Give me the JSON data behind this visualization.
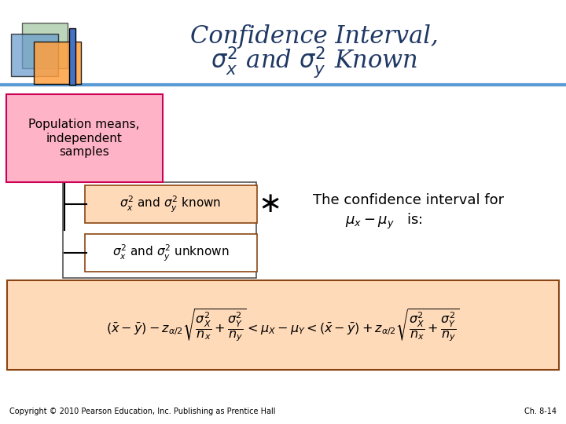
{
  "title_line1": "Confidence Interval,",
  "title_color": "#1F3864",
  "background_color": "#FFFFFF",
  "header_line_color": "#5B9BD5",
  "pink_box_text": "Population means,\nindependent\nsamples",
  "pink_box_facecolor": "#FFB3C6",
  "pink_box_edgecolor": "#CC0055",
  "known_box_facecolor": "#FFDAB9",
  "known_box_edgecolor": "#8B4513",
  "unknown_box_facecolor": "#FFFFFF",
  "unknown_box_edgecolor": "#8B4513",
  "formula_box_facecolor": "#FFDAB9",
  "formula_box_edgecolor": "#8B4513",
  "confidence_text_line1": "The confidence interval for",
  "copyright_text": "Copyright © 2010 Pearson Education, Inc. Publishing as Prentice Hall",
  "chapter_text": "Ch. 8-14",
  "text_color": "#000000",
  "sq_green_color": "#8FBC8F",
  "sq_blue_color": "#6699CC",
  "sq_orange_color": "#FFA040",
  "sq_bar_color": "#4472C4",
  "outer_box_edgecolor": "#555555"
}
